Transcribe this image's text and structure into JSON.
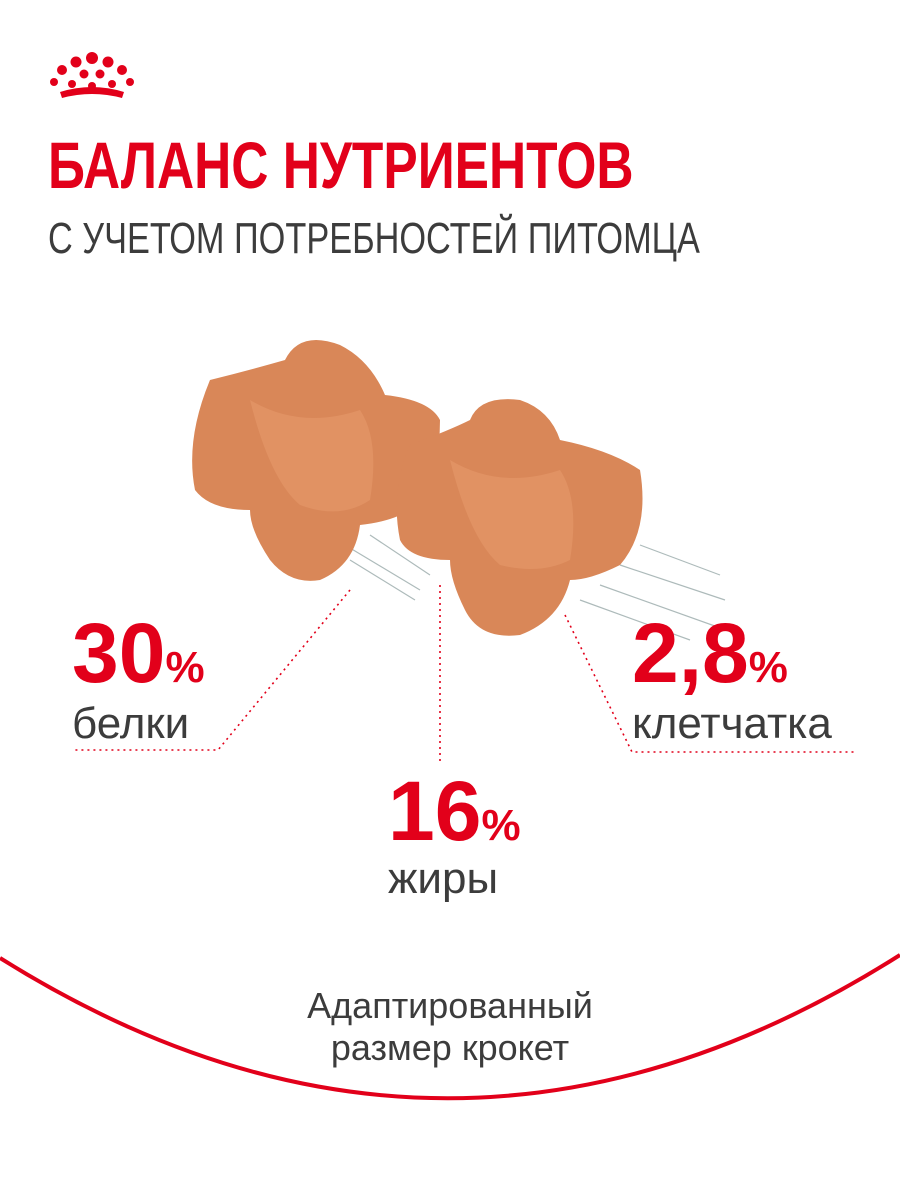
{
  "header": {
    "title": "БАЛАНС НУТРИЕНТОВ",
    "subtitle": "С УЧЕТОМ ПОТРЕБНОСТЕЙ ПИТОМЦА"
  },
  "stats": [
    {
      "value": "30",
      "unit": "%",
      "label": "белки"
    },
    {
      "value": "16",
      "unit": "%",
      "label": "жиры"
    },
    {
      "value": "2,8",
      "unit": "%",
      "label": "клетчатка"
    }
  ],
  "footer": {
    "lines": [
      "Адаптированный",
      "размер крокет"
    ]
  }
}
